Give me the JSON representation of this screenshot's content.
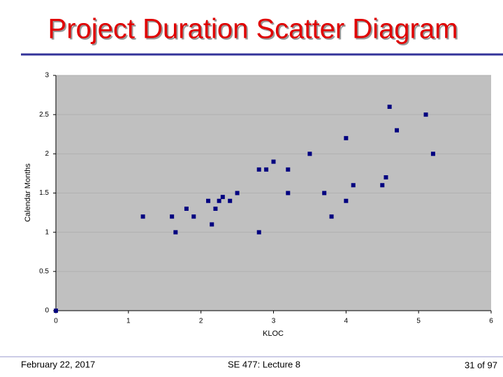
{
  "chart_data": {
    "type": "scatter",
    "title": "Project Duration Scatter Diagram",
    "x_label": "KLOC",
    "y_label": "Calendar Months",
    "x": [
      0,
      1.2,
      1.6,
      1.65,
      1.8,
      1.9,
      2.1,
      2.15,
      2.2,
      2.25,
      2.3,
      2.4,
      2.5,
      2.8,
      2.8,
      2.9,
      3.0,
      3.2,
      3.2,
      3.5,
      3.7,
      3.8,
      4.0,
      4.0,
      4.1,
      4.5,
      4.55,
      4.6,
      4.7,
      5.1,
      5.2
    ],
    "values": [
      0,
      1.2,
      1.2,
      1.0,
      1.3,
      1.2,
      1.4,
      1.1,
      1.3,
      1.4,
      1.45,
      1.4,
      1.5,
      1.8,
      1.0,
      1.8,
      1.9,
      1.8,
      1.5,
      2.0,
      1.5,
      1.2,
      2.2,
      1.4,
      1.6,
      1.6,
      1.7,
      2.6,
      2.3,
      2.5,
      2.0
    ],
    "color": "#000080",
    "xlim": [
      0,
      6
    ],
    "xticks": [
      0,
      1,
      2,
      3,
      4,
      5,
      6
    ],
    "ylim": [
      0,
      3
    ],
    "yticks": [
      0,
      0.5,
      1,
      1.5,
      2,
      2.5,
      3
    ],
    "grid": true
  },
  "footer": {
    "date": "February 22, 2017",
    "course": "SE 477: Lecture 8",
    "page": "31 of 97"
  }
}
